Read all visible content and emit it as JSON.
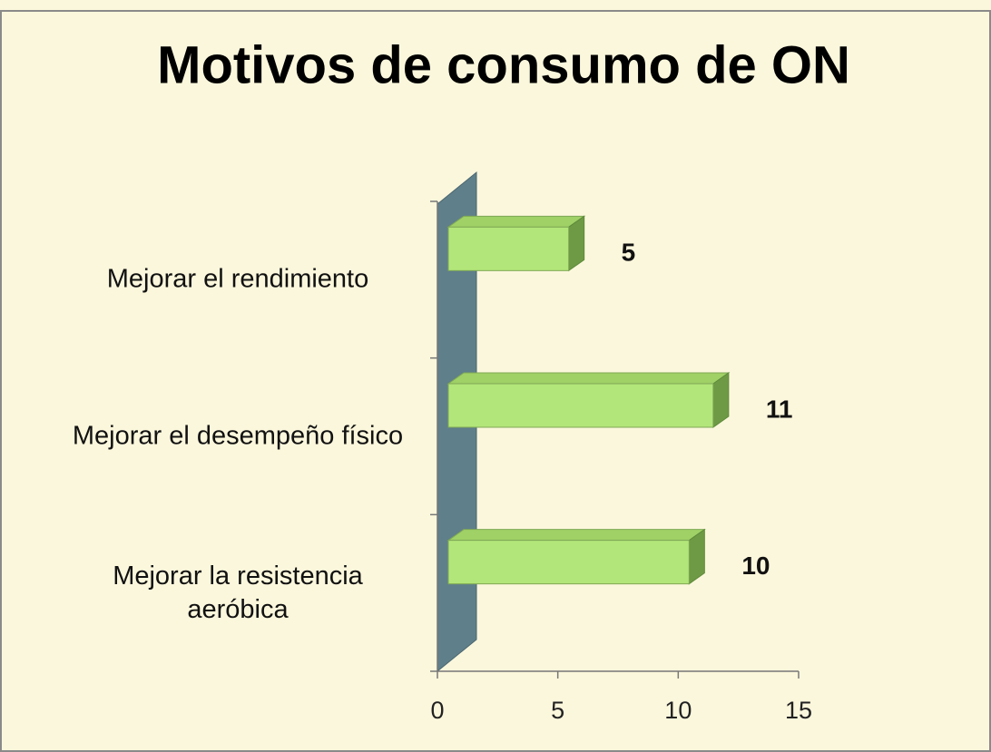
{
  "chart_data": {
    "type": "bar",
    "orientation": "horizontal",
    "title": "Motivos de consumo de ON",
    "categories": [
      "Mejorar el rendimiento",
      "Mejorar el desempeño físico",
      "Mejorar la resistencia aeróbica"
    ],
    "values": [
      5,
      11,
      10
    ],
    "color": "#b3e67a",
    "xlim": [
      0,
      15
    ],
    "xticks": [
      0,
      5,
      10,
      15
    ],
    "grid": false
  }
}
